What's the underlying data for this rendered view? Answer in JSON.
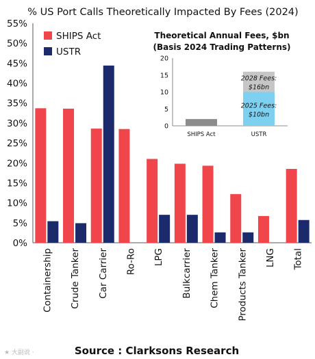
{
  "chart_data": [
    {
      "type": "bar",
      "title": "% US Port Calls Theoretically Impacted By Fees (2024)",
      "categories": [
        "Containership",
        "Crude Tanker",
        "Car Carrier",
        "Ro-Ro",
        "LPG",
        "Bulkcarrier",
        "Chem Tanker",
        "Products Tanker",
        "LNG",
        "Total"
      ],
      "series": [
        {
          "name": "SHIPS Act",
          "color": "#f0454a",
          "values": [
            33.7,
            33.6,
            28.6,
            28.5,
            21.0,
            19.8,
            19.3,
            12.2,
            6.7,
            18.5
          ]
        },
        {
          "name": "USTR",
          "color": "#1b2a6b",
          "values": [
            5.4,
            4.9,
            44.4,
            0,
            7.0,
            7.0,
            2.6,
            2.6,
            0,
            5.7
          ]
        }
      ],
      "ylim": [
        0,
        55
      ],
      "yticks": [
        "0%",
        "5%",
        "10%",
        "15%",
        "20%",
        "25%",
        "30%",
        "35%",
        "40%",
        "45%",
        "50%",
        "55%"
      ],
      "legend_position": "top-left",
      "grid": false
    },
    {
      "type": "bar",
      "stacked": true,
      "title_lines": [
        "Theoretical Annual Fees, $bn",
        "(Basis 2024 Trading Patterns)"
      ],
      "categories": [
        "SHIPS Act",
        "USTR"
      ],
      "ylim": [
        0,
        20
      ],
      "yticks": [
        "0",
        "5",
        "10",
        "15",
        "20"
      ],
      "series": [
        {
          "name": "",
          "color": "#8c8c8c",
          "values": [
            2,
            0
          ]
        },
        {
          "name": "",
          "color": "#7dd0f0",
          "values": [
            0,
            10
          ],
          "label_lines": [
            "2025 Fees:",
            "$10bn"
          ]
        },
        {
          "name": "",
          "color": "#c6c6c6",
          "values": [
            0,
            6
          ],
          "label_lines": [
            "2028 Fees:",
            "$16bn"
          ]
        }
      ],
      "grid": false
    }
  ],
  "footer": {
    "source": "Source : Clarksons Research",
    "watermark": "★ 大副说 ·"
  }
}
